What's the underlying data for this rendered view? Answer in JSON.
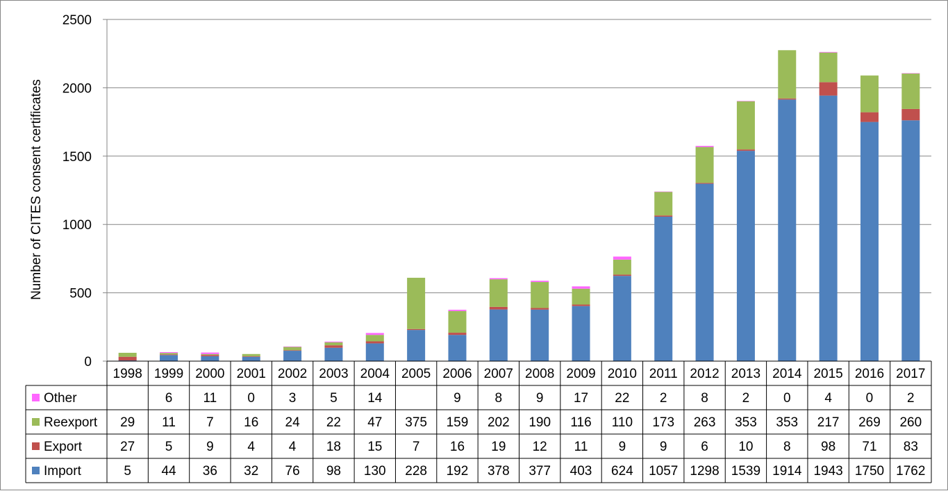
{
  "chart_data": {
    "type": "bar",
    "stacked": true,
    "title": "",
    "xlabel": "",
    "ylabel": "Number of CITES consent certificates",
    "ylim": [
      0,
      2500
    ],
    "yticks": [
      0,
      500,
      1000,
      1500,
      2000,
      2500
    ],
    "grid": true,
    "legend": "data-table-left",
    "categories": [
      "1998",
      "1999",
      "2000",
      "2001",
      "2002",
      "2003",
      "2004",
      "2005",
      "2006",
      "2007",
      "2008",
      "2009",
      "2010",
      "2011",
      "2012",
      "2013",
      "2014",
      "2015",
      "2016",
      "2017"
    ],
    "series": [
      {
        "name": "Import",
        "color": "#4F81BD",
        "values": [
          5,
          44,
          36,
          32,
          76,
          98,
          130,
          228,
          192,
          378,
          377,
          403,
          624,
          1057,
          1298,
          1539,
          1914,
          1943,
          1750,
          1762
        ]
      },
      {
        "name": "Export",
        "color": "#C0504D",
        "values": [
          27,
          5,
          9,
          4,
          4,
          18,
          15,
          7,
          16,
          19,
          12,
          11,
          9,
          9,
          6,
          10,
          8,
          98,
          71,
          83
        ]
      },
      {
        "name": "Reexport",
        "color": "#9BBB59",
        "values": [
          29,
          11,
          7,
          16,
          24,
          22,
          47,
          375,
          159,
          202,
          190,
          116,
          110,
          173,
          263,
          353,
          353,
          217,
          269,
          260
        ]
      },
      {
        "name": "Other",
        "color": "#FF66FF",
        "values": [
          null,
          6,
          11,
          0,
          3,
          5,
          14,
          null,
          9,
          8,
          9,
          17,
          22,
          2,
          8,
          2,
          0,
          4,
          0,
          2
        ]
      }
    ],
    "table_row_order": [
      "Other",
      "Reexport",
      "Export",
      "Import"
    ]
  }
}
